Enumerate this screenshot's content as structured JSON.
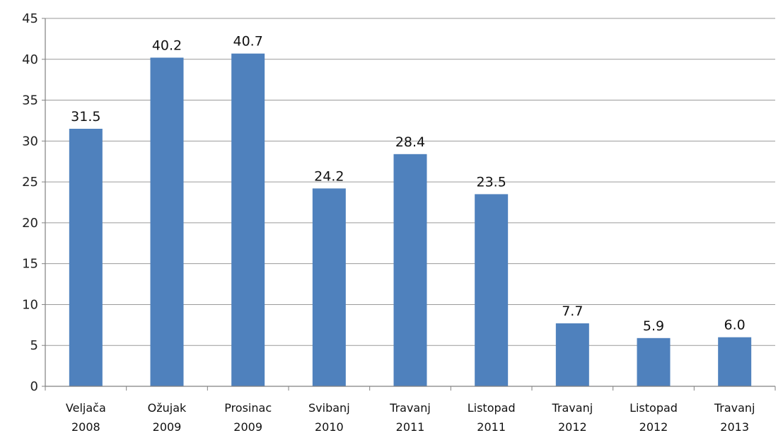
{
  "chart_data": {
    "type": "bar",
    "title": "",
    "xlabel": "",
    "ylabel": "",
    "ylim": [
      0,
      45
    ],
    "yticks": [
      0,
      5,
      10,
      15,
      20,
      25,
      30,
      35,
      40,
      45
    ],
    "grid": true,
    "legend": "none",
    "bar_color": "#4f81bd",
    "categories": [
      [
        "Veljača",
        "2008"
      ],
      [
        "Ožujak",
        "2009"
      ],
      [
        "Prosinac",
        "2009"
      ],
      [
        "Svibanj",
        "2010"
      ],
      [
        "Travanj",
        "2011"
      ],
      [
        "Listopad",
        "2011"
      ],
      [
        "Travanj",
        "2012"
      ],
      [
        "Listopad",
        "2012"
      ],
      [
        "Travanj",
        "2013"
      ]
    ],
    "values": [
      31.5,
      40.2,
      40.7,
      24.2,
      28.4,
      23.5,
      7.7,
      5.9,
      6.0
    ],
    "data_labels": [
      "31.5",
      "40.2",
      "40.7",
      "24.2",
      "28.4",
      "23.5",
      "7.7",
      "5.9",
      "6.0"
    ]
  }
}
